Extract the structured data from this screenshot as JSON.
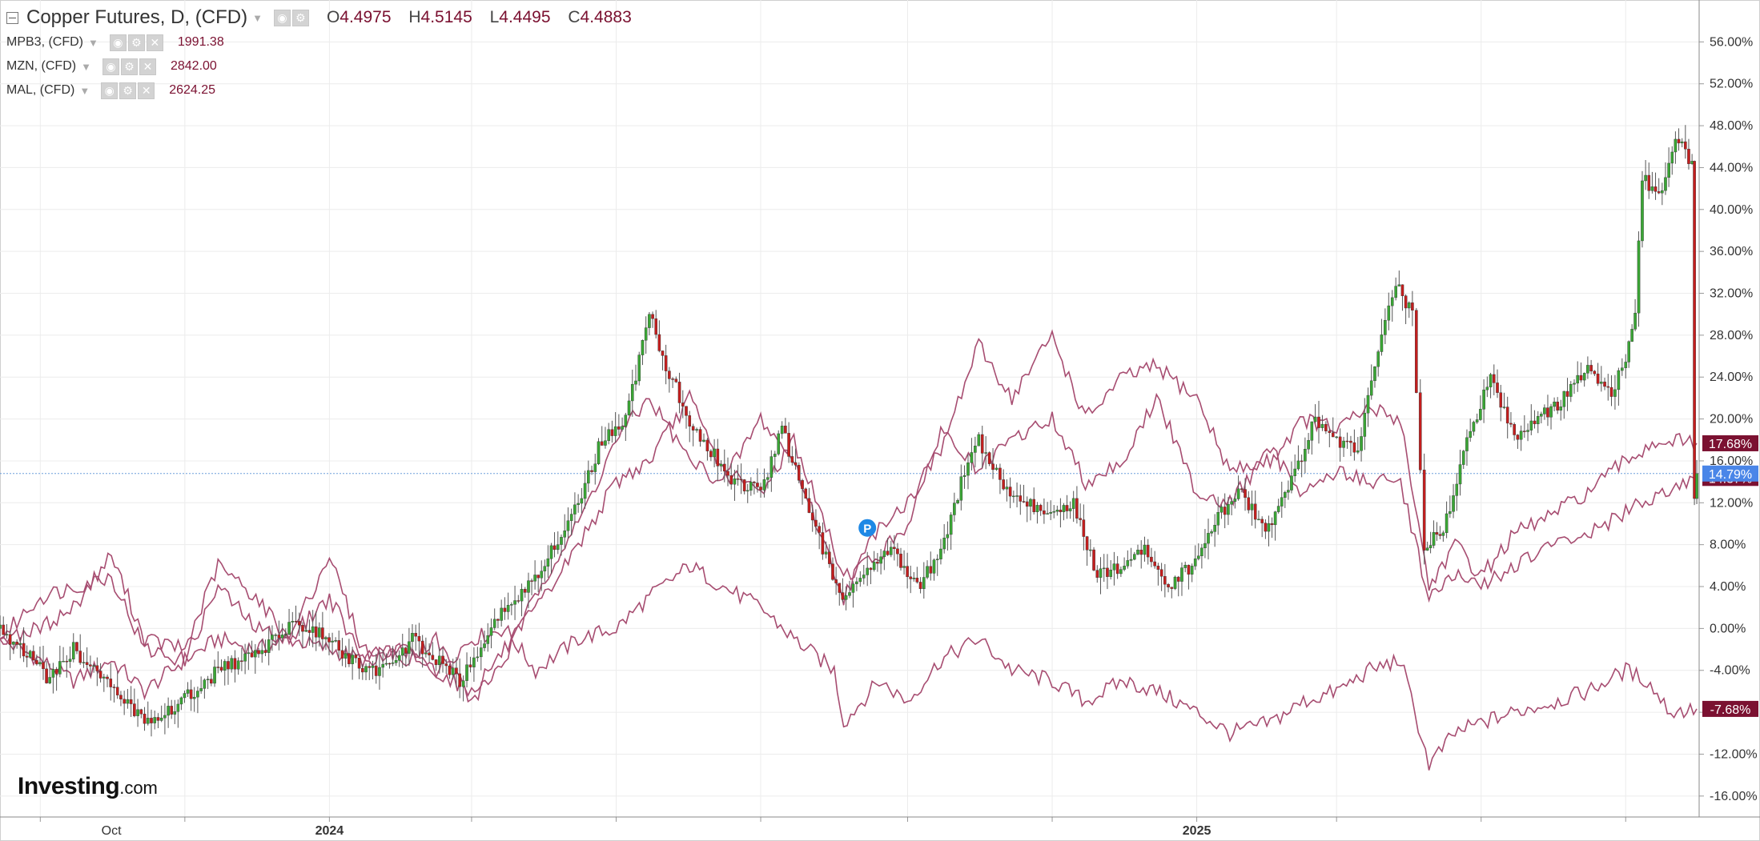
{
  "header": {
    "title": "Copper Futures, D, (CFD)",
    "ohlc": [
      {
        "key": "O",
        "value": "4.4975"
      },
      {
        "key": "H",
        "value": "4.5145"
      },
      {
        "key": "L",
        "value": "4.4495"
      },
      {
        "key": "C",
        "value": "4.4883"
      }
    ]
  },
  "comparisons": [
    {
      "title": "MPB3, (CFD)",
      "value": "1991.38"
    },
    {
      "title": "MZN, (CFD)",
      "value": "2842.00"
    },
    {
      "title": "MAL, (CFD)",
      "value": "2624.25"
    }
  ],
  "brand": {
    "name": "Investing",
    "suffix": ".com"
  },
  "colors": {
    "up": "#3aa635",
    "down": "#c41e1e",
    "compare_line": "#a74d71",
    "price_tag": "#7b1131",
    "current_tag": "#4a86e8",
    "grid": "#ececec",
    "dotted_line": "#6f9fdc"
  },
  "chart_data": {
    "type": "line",
    "y_unit": "% change",
    "ylim": [
      -18,
      60
    ],
    "y_ticks": [
      "56.00%",
      "52.00%",
      "48.00%",
      "44.00%",
      "40.00%",
      "36.00%",
      "32.00%",
      "28.00%",
      "24.00%",
      "20.00%",
      "16.00%",
      "12.00%",
      "8.00%",
      "4.00%",
      "0.00%",
      "-4.00%",
      "-8.00%",
      "-12.00%",
      "-16.00%"
    ],
    "x_ticks": [
      {
        "label": "Oct",
        "date": "2023-10-01",
        "bold": false
      },
      {
        "label": "2024",
        "date": "2024-01-01",
        "bold": true
      },
      {
        "label": "2025",
        "date": "2025-01-01",
        "bold": true
      }
    ],
    "x_range": [
      "2023-08-15",
      "2025-08-01"
    ],
    "grid": true,
    "current_value_label": "14.79%",
    "last_value_labels": [
      "17.68%",
      "14.37%",
      "-7.68%"
    ],
    "marker_label": "P",
    "series": [
      {
        "name": "Copper Futures",
        "style": "candlestick",
        "points": [
          [
            "2023-08-15",
            0
          ],
          [
            "2023-08-25",
            -2
          ],
          [
            "2023-09-05",
            -5
          ],
          [
            "2023-09-15",
            -2
          ],
          [
            "2023-09-25",
            -4
          ],
          [
            "2023-10-05",
            -7
          ],
          [
            "2023-10-15",
            -8.5
          ],
          [
            "2023-10-25",
            -8
          ],
          [
            "2023-11-05",
            -6
          ],
          [
            "2023-11-15",
            -4
          ],
          [
            "2023-11-25",
            -3
          ],
          [
            "2023-12-05",
            -2
          ],
          [
            "2023-12-15",
            0.5
          ],
          [
            "2023-12-25",
            0
          ],
          [
            "2024-01-05",
            -2
          ],
          [
            "2024-01-15",
            -4
          ],
          [
            "2024-01-25",
            -4
          ],
          [
            "2024-02-05",
            -1
          ],
          [
            "2024-02-15",
            -3
          ],
          [
            "2024-02-25",
            -5
          ],
          [
            "2024-03-05",
            -2
          ],
          [
            "2024-03-15",
            2
          ],
          [
            "2024-03-25",
            4
          ],
          [
            "2024-04-05",
            8
          ],
          [
            "2024-04-15",
            12
          ],
          [
            "2024-04-25",
            18
          ],
          [
            "2024-05-05",
            20
          ],
          [
            "2024-05-15",
            30
          ],
          [
            "2024-05-22",
            25
          ],
          [
            "2024-06-01",
            20
          ],
          [
            "2024-06-10",
            17
          ],
          [
            "2024-06-20",
            14
          ],
          [
            "2024-07-01",
            13
          ],
          [
            "2024-07-10",
            19
          ],
          [
            "2024-07-20",
            12
          ],
          [
            "2024-07-30",
            6
          ],
          [
            "2024-08-06",
            2.5
          ],
          [
            "2024-08-15",
            6
          ],
          [
            "2024-08-25",
            8
          ],
          [
            "2024-09-05",
            4
          ],
          [
            "2024-09-15",
            7
          ],
          [
            "2024-09-25",
            15
          ],
          [
            "2024-10-01",
            18
          ],
          [
            "2024-10-10",
            14
          ],
          [
            "2024-10-20",
            12
          ],
          [
            "2024-10-30",
            11
          ],
          [
            "2024-11-10",
            12
          ],
          [
            "2024-11-20",
            5
          ],
          [
            "2024-11-30",
            6
          ],
          [
            "2024-12-10",
            8
          ],
          [
            "2024-12-20",
            4
          ],
          [
            "2024-12-30",
            6
          ],
          [
            "2025-01-10",
            11
          ],
          [
            "2025-01-20",
            13
          ],
          [
            "2025-01-30",
            9
          ],
          [
            "2025-02-10",
            14
          ],
          [
            "2025-02-20",
            20
          ],
          [
            "2025-03-01",
            18
          ],
          [
            "2025-03-10",
            17
          ],
          [
            "2025-03-20",
            28
          ],
          [
            "2025-03-26",
            33
          ],
          [
            "2025-04-02",
            30
          ],
          [
            "2025-04-07",
            8
          ],
          [
            "2025-04-15",
            9
          ],
          [
            "2025-04-25",
            18
          ],
          [
            "2025-05-05",
            24
          ],
          [
            "2025-05-15",
            18
          ],
          [
            "2025-05-25",
            20
          ],
          [
            "2025-06-05",
            22
          ],
          [
            "2025-06-15",
            25
          ],
          [
            "2025-06-25",
            22
          ],
          [
            "2025-07-01",
            26
          ],
          [
            "2025-07-05",
            30
          ],
          [
            "2025-07-08",
            43
          ],
          [
            "2025-07-15",
            41
          ],
          [
            "2025-07-22",
            47
          ],
          [
            "2025-07-29",
            44
          ],
          [
            "2025-07-30",
            12
          ],
          [
            "2025-07-31",
            14.79
          ]
        ]
      },
      {
        "name": "MPB3, (CFD)",
        "style": "line",
        "points": [
          [
            "2023-08-15",
            -1
          ],
          [
            "2023-09-01",
            -3
          ],
          [
            "2023-09-15",
            -5
          ],
          [
            "2023-10-01",
            -3
          ],
          [
            "2023-10-15",
            -6
          ],
          [
            "2023-11-01",
            -3
          ],
          [
            "2023-11-15",
            -1
          ],
          [
            "2023-12-01",
            -2
          ],
          [
            "2023-12-15",
            -1
          ],
          [
            "2024-01-01",
            -2
          ],
          [
            "2024-01-15",
            -3
          ],
          [
            "2024-02-01",
            -2
          ],
          [
            "2024-02-15",
            -4
          ],
          [
            "2024-03-01",
            -1
          ],
          [
            "2024-03-15",
            0
          ],
          [
            "2024-03-28",
            -4
          ],
          [
            "2024-04-15",
            -1
          ],
          [
            "2024-05-01",
            0
          ],
          [
            "2024-05-15",
            3
          ],
          [
            "2024-06-01",
            6
          ],
          [
            "2024-06-15",
            4
          ],
          [
            "2024-07-01",
            2
          ],
          [
            "2024-07-15",
            -1
          ],
          [
            "2024-08-01",
            -4
          ],
          [
            "2024-08-05",
            -9
          ],
          [
            "2024-08-20",
            -5
          ],
          [
            "2024-09-01",
            -7
          ],
          [
            "2024-09-15",
            -3
          ],
          [
            "2024-10-01",
            -1
          ],
          [
            "2024-10-15",
            -4
          ],
          [
            "2024-11-01",
            -5
          ],
          [
            "2024-11-15",
            -7
          ],
          [
            "2024-12-01",
            -5
          ],
          [
            "2024-12-15",
            -6
          ],
          [
            "2025-01-01",
            -8
          ],
          [
            "2025-01-15",
            -10
          ],
          [
            "2025-02-01",
            -9
          ],
          [
            "2025-02-15",
            -7
          ],
          [
            "2025-03-01",
            -6
          ],
          [
            "2025-03-15",
            -4
          ],
          [
            "2025-03-28",
            -3
          ],
          [
            "2025-04-09",
            -13
          ],
          [
            "2025-04-20",
            -10
          ],
          [
            "2025-05-01",
            -9
          ],
          [
            "2025-05-15",
            -8
          ],
          [
            "2025-06-01",
            -7
          ],
          [
            "2025-06-15",
            -6
          ],
          [
            "2025-07-01",
            -4
          ],
          [
            "2025-07-10",
            -5
          ],
          [
            "2025-07-20",
            -8
          ],
          [
            "2025-07-31",
            -7.68
          ]
        ]
      },
      {
        "name": "MZN, (CFD)",
        "style": "line",
        "points": [
          [
            "2023-08-15",
            -1
          ],
          [
            "2023-09-01",
            3
          ],
          [
            "2023-09-15",
            4
          ],
          [
            "2023-10-01",
            5
          ],
          [
            "2023-10-15",
            -2
          ],
          [
            "2023-11-01",
            -3
          ],
          [
            "2023-11-15",
            4
          ],
          [
            "2023-12-01",
            0
          ],
          [
            "2023-12-15",
            -1
          ],
          [
            "2024-01-01",
            7
          ],
          [
            "2024-01-15",
            -2
          ],
          [
            "2024-02-01",
            -3
          ],
          [
            "2024-02-15",
            -1
          ],
          [
            "2024-03-01",
            -7
          ],
          [
            "2024-03-15",
            -3
          ],
          [
            "2024-04-01",
            5
          ],
          [
            "2024-04-15",
            10
          ],
          [
            "2024-05-01",
            18
          ],
          [
            "2024-05-15",
            22
          ],
          [
            "2024-06-01",
            16
          ],
          [
            "2024-06-15",
            14
          ],
          [
            "2024-07-01",
            20
          ],
          [
            "2024-07-15",
            16
          ],
          [
            "2024-08-05",
            3
          ],
          [
            "2024-08-20",
            10
          ],
          [
            "2024-09-01",
            12
          ],
          [
            "2024-09-15",
            17
          ],
          [
            "2024-10-01",
            27
          ],
          [
            "2024-10-15",
            22
          ],
          [
            "2024-11-01",
            28
          ],
          [
            "2024-11-15",
            20
          ],
          [
            "2024-12-01",
            24
          ],
          [
            "2024-12-15",
            25
          ],
          [
            "2025-01-01",
            22
          ],
          [
            "2025-01-15",
            15
          ],
          [
            "2025-02-01",
            16
          ],
          [
            "2025-02-15",
            20
          ],
          [
            "2025-03-01",
            19
          ],
          [
            "2025-03-15",
            21
          ],
          [
            "2025-03-28",
            20
          ],
          [
            "2025-04-09",
            4
          ],
          [
            "2025-04-20",
            8
          ],
          [
            "2025-05-01",
            5
          ],
          [
            "2025-05-15",
            9
          ],
          [
            "2025-06-01",
            11
          ],
          [
            "2025-06-15",
            13
          ],
          [
            "2025-07-01",
            16
          ],
          [
            "2025-07-15",
            18
          ],
          [
            "2025-07-31",
            17.68
          ]
        ]
      },
      {
        "name": "MAL, (CFD)",
        "style": "line",
        "points": [
          [
            "2023-08-15",
            -1
          ],
          [
            "2023-09-01",
            0
          ],
          [
            "2023-09-15",
            2
          ],
          [
            "2023-10-01",
            7
          ],
          [
            "2023-10-15",
            -1
          ],
          [
            "2023-11-01",
            -2
          ],
          [
            "2023-11-15",
            6
          ],
          [
            "2023-12-01",
            3
          ],
          [
            "2023-12-15",
            -1
          ],
          [
            "2024-01-01",
            3
          ],
          [
            "2024-01-15",
            -3
          ],
          [
            "2024-02-01",
            -2
          ],
          [
            "2024-02-15",
            -4
          ],
          [
            "2024-03-01",
            -6
          ],
          [
            "2024-03-15",
            -2
          ],
          [
            "2024-04-01",
            3
          ],
          [
            "2024-04-15",
            8
          ],
          [
            "2024-05-01",
            14
          ],
          [
            "2024-05-15",
            16
          ],
          [
            "2024-06-01",
            22
          ],
          [
            "2024-06-15",
            15
          ],
          [
            "2024-07-01",
            13
          ],
          [
            "2024-07-15",
            18
          ],
          [
            "2024-08-05",
            5
          ],
          [
            "2024-08-20",
            7
          ],
          [
            "2024-09-01",
            10
          ],
          [
            "2024-09-15",
            19
          ],
          [
            "2024-10-01",
            15
          ],
          [
            "2024-10-15",
            18
          ],
          [
            "2024-11-01",
            20
          ],
          [
            "2024-11-15",
            14
          ],
          [
            "2024-12-01",
            16
          ],
          [
            "2024-12-15",
            22
          ],
          [
            "2025-01-01",
            13
          ],
          [
            "2025-01-15",
            12
          ],
          [
            "2025-02-01",
            17
          ],
          [
            "2025-02-15",
            13
          ],
          [
            "2025-03-01",
            15
          ],
          [
            "2025-03-15",
            14
          ],
          [
            "2025-03-28",
            14
          ],
          [
            "2025-04-09",
            3
          ],
          [
            "2025-04-20",
            5
          ],
          [
            "2025-05-01",
            4
          ],
          [
            "2025-05-15",
            6
          ],
          [
            "2025-06-01",
            8
          ],
          [
            "2025-06-15",
            9
          ],
          [
            "2025-07-01",
            11
          ],
          [
            "2025-07-15",
            13
          ],
          [
            "2025-07-31",
            14.37
          ]
        ]
      }
    ]
  }
}
